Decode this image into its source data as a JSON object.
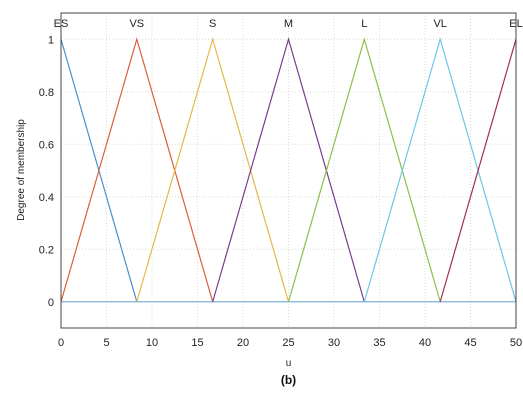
{
  "chart_data": {
    "type": "line",
    "caption": "(b)",
    "xlabel": "u",
    "ylabel": "Degree of membership",
    "xlim": [
      0,
      50
    ],
    "ylim": [
      -0.1,
      1.1
    ],
    "xticks": [
      0,
      5,
      10,
      15,
      20,
      25,
      30,
      35,
      40,
      45,
      50
    ],
    "yticks": [
      0,
      0.2,
      0.4,
      0.6,
      0.8,
      1
    ],
    "grid": true,
    "legend": "labels above peaks",
    "series": [
      {
        "name": "ES",
        "color": "#4a90c8",
        "peak": 0,
        "points": [
          [
            0,
            1
          ],
          [
            8.33,
            0
          ]
        ]
      },
      {
        "name": "VS",
        "color": "#d95f3b",
        "peak": 8.33,
        "points": [
          [
            0,
            0
          ],
          [
            8.33,
            1
          ],
          [
            16.67,
            0
          ]
        ]
      },
      {
        "name": "S",
        "color": "#e6b84a",
        "peak": 16.67,
        "points": [
          [
            8.33,
            0
          ],
          [
            16.67,
            1
          ],
          [
            25,
            0
          ]
        ]
      },
      {
        "name": "M",
        "color": "#7a3b8f",
        "peak": 25,
        "points": [
          [
            16.67,
            0
          ],
          [
            25,
            1
          ],
          [
            33.33,
            0
          ]
        ]
      },
      {
        "name": "L",
        "color": "#8cbf4a",
        "peak": 33.33,
        "points": [
          [
            25,
            0
          ],
          [
            33.33,
            1
          ],
          [
            41.67,
            0
          ]
        ]
      },
      {
        "name": "VL",
        "color": "#6cc6e8",
        "peak": 41.67,
        "points": [
          [
            33.33,
            0
          ],
          [
            41.67,
            1
          ],
          [
            50,
            0
          ]
        ]
      },
      {
        "name": "EL",
        "color": "#a0304a",
        "peak": 50,
        "points": [
          [
            41.67,
            0
          ],
          [
            50,
            1
          ]
        ]
      }
    ],
    "baseline_color": "#7fb2d8"
  }
}
